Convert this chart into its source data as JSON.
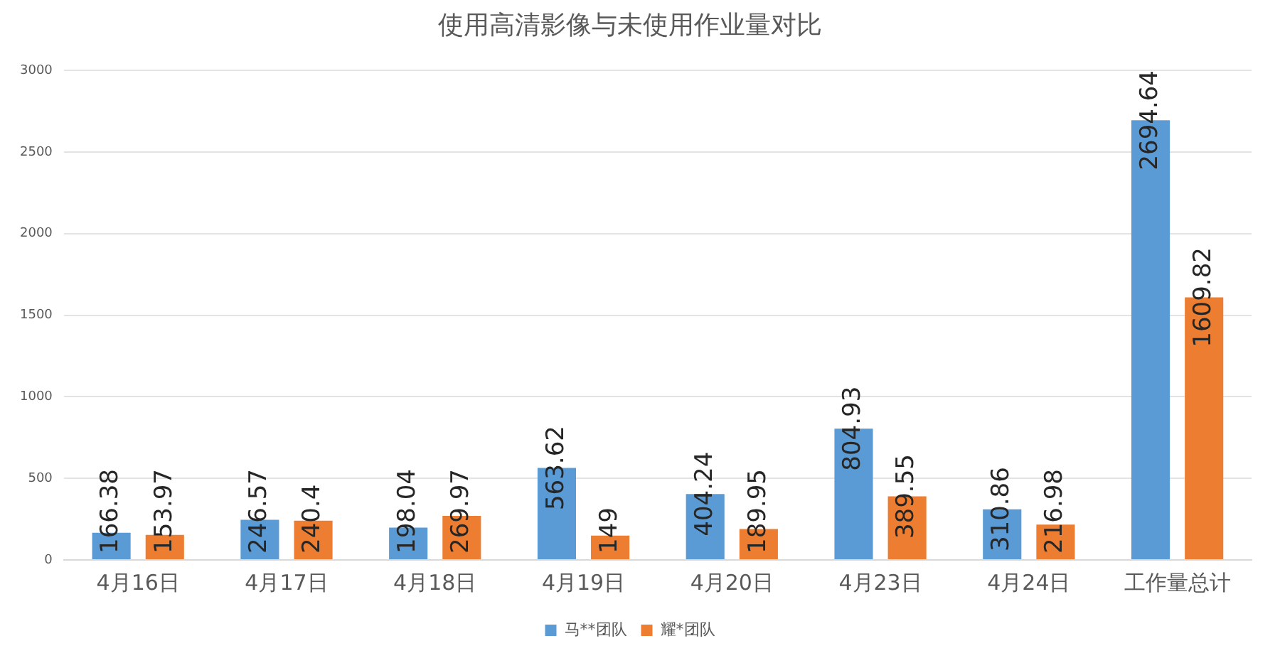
{
  "chart_data": {
    "type": "bar",
    "title": "使用高清影像与未使用作业量对比",
    "categories": [
      "4月16日",
      "4月17日",
      "4月18日",
      "4月19日",
      "4月20日",
      "4月23日",
      "4月24日",
      "工作量总计"
    ],
    "series": [
      {
        "name": "马**团队",
        "color": "#5b9bd5",
        "values": [
          166.38,
          246.57,
          198.04,
          563.62,
          404.24,
          804.93,
          310.86,
          2694.64
        ]
      },
      {
        "name": "耀*团队",
        "color": "#ed7d31",
        "values": [
          153.97,
          240.4,
          269.97,
          149,
          189.95,
          389.55,
          216.98,
          1609.82
        ]
      }
    ],
    "ylim": [
      0,
      3000
    ],
    "yticks": [
      0,
      500,
      1000,
      1500,
      2000,
      2500,
      3000
    ],
    "grid": "y",
    "legend": "bottom",
    "data_labels": true
  }
}
